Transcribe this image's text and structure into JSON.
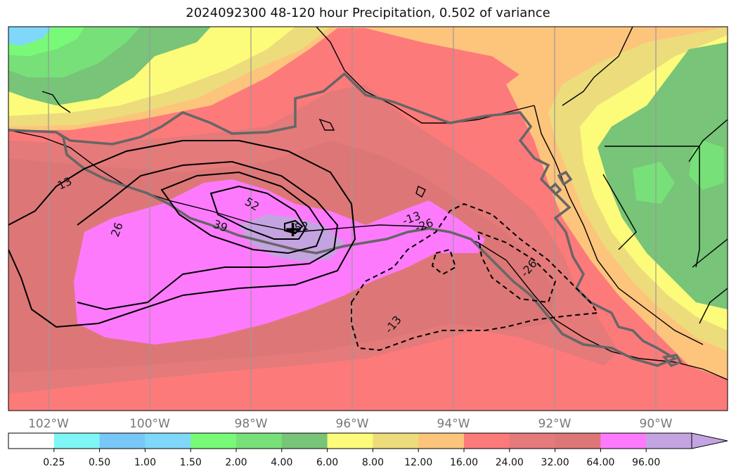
{
  "title": "2024092300 48-120 hour Precipitation, 0.502 of variance",
  "map": {
    "longitude_labels": [
      "102°W",
      "100°W",
      "98°W",
      "96°W",
      "94°W",
      "92°W",
      "90°W"
    ],
    "contour_labels": [
      "13",
      "26",
      "39",
      "52",
      "52",
      "-13",
      "-26",
      "-26",
      "-13"
    ],
    "marker": "+"
  },
  "colorbar": {
    "levels": [
      "0.25",
      "0.50",
      "1.00",
      "1.50",
      "2.00",
      "4.00",
      "6.00",
      "8.00",
      "12.00",
      "16.00",
      "24.00",
      "32.00",
      "64.00",
      "96.00"
    ],
    "colors": [
      "#ffffff",
      "#7ff6f6",
      "#78c8f7",
      "#7fd8f9",
      "#78fa78",
      "#78e078",
      "#78c478",
      "#fdfc7a",
      "#ecdc7c",
      "#fdc47c",
      "#fd7a7a",
      "#e47a7a",
      "#dd7777",
      "#fd7afd",
      "#c4a4e0"
    ]
  }
}
